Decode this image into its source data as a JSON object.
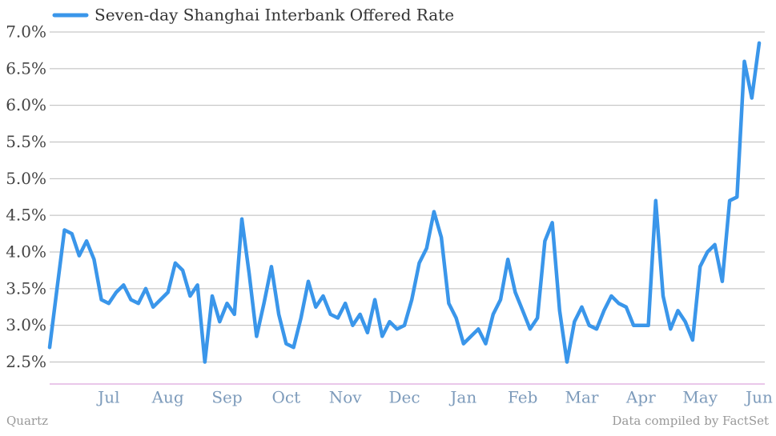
{
  "chart_data": {
    "type": "line",
    "series": [
      {
        "name": "Seven-day Shanghai Interbank Offered Rate",
        "color": "#3a96ea",
        "values": [
          2.7,
          3.5,
          4.3,
          4.25,
          3.95,
          4.15,
          3.9,
          3.35,
          3.3,
          3.45,
          3.55,
          3.35,
          3.3,
          3.5,
          3.25,
          3.35,
          3.45,
          3.85,
          3.75,
          3.4,
          3.55,
          2.5,
          3.4,
          3.05,
          3.3,
          3.15,
          4.45,
          3.7,
          2.85,
          3.3,
          3.8,
          3.15,
          2.75,
          2.7,
          3.1,
          3.6,
          3.25,
          3.4,
          3.15,
          3.1,
          3.3,
          3.0,
          3.15,
          2.9,
          3.35,
          2.85,
          3.05,
          2.95,
          3.0,
          3.35,
          3.85,
          4.05,
          4.55,
          4.2,
          3.3,
          3.1,
          2.75,
          2.85,
          2.95,
          2.75,
          3.15,
          3.35,
          3.9,
          3.45,
          3.2,
          2.95,
          3.1,
          4.15,
          4.4,
          3.2,
          2.5,
          3.05,
          3.25,
          3.0,
          2.95,
          3.2,
          3.4,
          3.3,
          3.25,
          3.0,
          3.0,
          3.0,
          4.7,
          3.4,
          2.95,
          3.2,
          3.05,
          2.8,
          3.8,
          4.0,
          4.1,
          3.6,
          4.7,
          4.75,
          6.6,
          6.1,
          6.85
        ]
      }
    ],
    "categories": [
      null,
      null,
      null,
      null,
      null,
      null,
      null,
      null,
      "Jul",
      null,
      null,
      null,
      null,
      null,
      null,
      null,
      "Aug",
      null,
      null,
      null,
      null,
      null,
      null,
      null,
      "Sep",
      null,
      null,
      null,
      null,
      null,
      null,
      null,
      "Oct",
      null,
      null,
      null,
      null,
      null,
      null,
      null,
      "Nov",
      null,
      null,
      null,
      null,
      null,
      null,
      null,
      "Dec",
      null,
      null,
      null,
      null,
      null,
      null,
      null,
      "Jan",
      null,
      null,
      null,
      null,
      null,
      null,
      null,
      "Feb",
      null,
      null,
      null,
      null,
      null,
      null,
      null,
      "Mar",
      null,
      null,
      null,
      null,
      null,
      null,
      null,
      "Apr",
      null,
      null,
      null,
      null,
      null,
      null,
      null,
      "May",
      null,
      null,
      null,
      null,
      null,
      null,
      null,
      "Jun"
    ],
    "ylim": [
      2.2,
      7.0
    ],
    "yticks": [
      {
        "value": 2.5,
        "label": "2.5%"
      },
      {
        "value": 3.0,
        "label": "3.0%"
      },
      {
        "value": 3.5,
        "label": "3.5%"
      },
      {
        "value": 4.0,
        "label": "4.0%"
      },
      {
        "value": 4.5,
        "label": "4.5%"
      },
      {
        "value": 5.0,
        "label": "5.0%"
      },
      {
        "value": 5.5,
        "label": "5.5%"
      },
      {
        "value": 6.0,
        "label": "6.0%"
      },
      {
        "value": 6.5,
        "label": "6.5%"
      },
      {
        "value": 7.0,
        "label": "7.0%"
      }
    ],
    "grid": true,
    "source": "Data compiled by FactSet",
    "credit": "Quartz"
  }
}
